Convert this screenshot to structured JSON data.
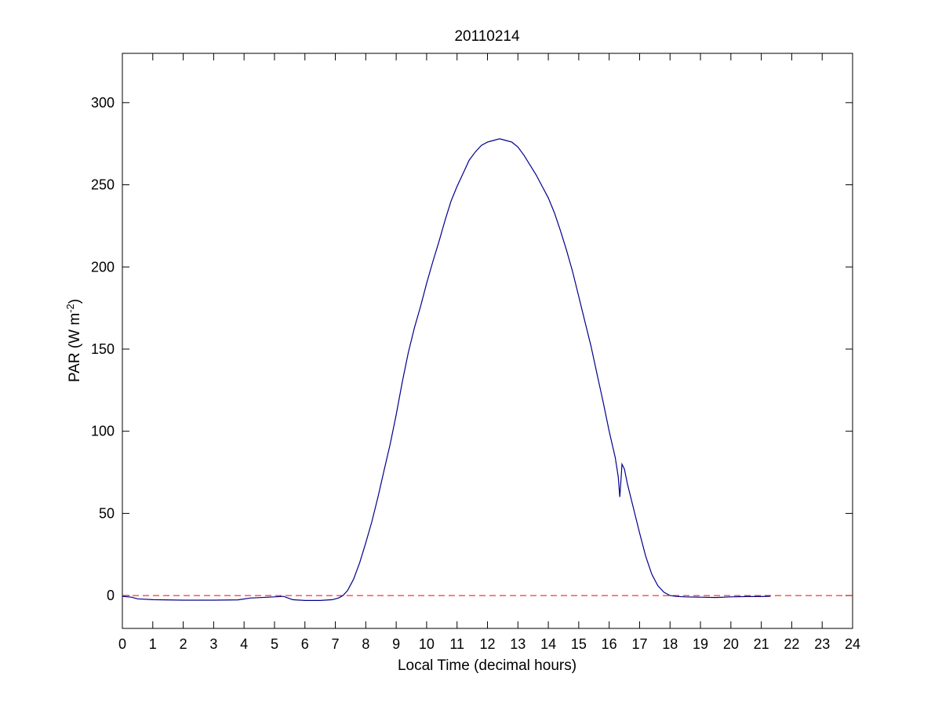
{
  "chart_data": {
    "type": "line",
    "title": "20110214",
    "xlabel": "Local Time (decimal hours)",
    "ylabel_main": "PAR (W m",
    "ylabel_sup": "-2",
    "ylabel_end": ")",
    "xlim": [
      0,
      24
    ],
    "ylim": [
      -20,
      330
    ],
    "xticks": [
      0,
      1,
      2,
      3,
      4,
      5,
      6,
      7,
      8,
      9,
      10,
      11,
      12,
      13,
      14,
      15,
      16,
      17,
      18,
      19,
      20,
      21,
      22,
      23,
      24
    ],
    "yticks": [
      0,
      50,
      100,
      150,
      200,
      250,
      300
    ],
    "grid": false,
    "legend": "none",
    "series": [
      {
        "color": "#00008b",
        "x": [
          0,
          0.3,
          0.5,
          1,
          2,
          3,
          3.8,
          4.2,
          4.8,
          5.3,
          5.6,
          6.0,
          6.5,
          6.9,
          7.1,
          7.25,
          7.4,
          7.6,
          7.8,
          8.0,
          8.2,
          8.4,
          8.6,
          8.8,
          9.0,
          9.2,
          9.4,
          9.6,
          9.8,
          10.0,
          10.2,
          10.4,
          10.6,
          10.8,
          11.0,
          11.2,
          11.4,
          11.6,
          11.8,
          12.0,
          12.2,
          12.4,
          12.6,
          12.8,
          13.0,
          13.2,
          13.4,
          13.6,
          13.8,
          14.0,
          14.2,
          14.4,
          14.6,
          14.8,
          15.0,
          15.2,
          15.4,
          15.6,
          15.8,
          16.0,
          16.2,
          16.3,
          16.35,
          16.38,
          16.42,
          16.5,
          16.6,
          16.8,
          17.0,
          17.2,
          17.4,
          17.6,
          17.8,
          18.0,
          18.2,
          18.5,
          19.0,
          19.5,
          20.0,
          20.5,
          21.0,
          21.3
        ],
        "y": [
          -0.5,
          -1,
          -2,
          -2.5,
          -2.8,
          -2.8,
          -2.6,
          -1.5,
          -1,
          -0.5,
          -2.5,
          -3,
          -3,
          -2.5,
          -1.5,
          0,
          3,
          10,
          20,
          32,
          45,
          60,
          76,
          92,
          110,
          130,
          148,
          163,
          176,
          190,
          203,
          215,
          228,
          240,
          249,
          257,
          265,
          270,
          274,
          276,
          277,
          278,
          277,
          276,
          273,
          268,
          262,
          256,
          249,
          242,
          233,
          222,
          210,
          197,
          182,
          167,
          152,
          135,
          118,
          100,
          84,
          72,
          60,
          68,
          80,
          77,
          68,
          53,
          38,
          24,
          13,
          6,
          2,
          0,
          -0.5,
          -0.8,
          -1,
          -1.2,
          -0.8,
          -0.6,
          -0.6,
          -0.4
        ]
      }
    ],
    "reference_line": {
      "y": 0,
      "color": "#ff0000",
      "style": "dashed"
    }
  }
}
